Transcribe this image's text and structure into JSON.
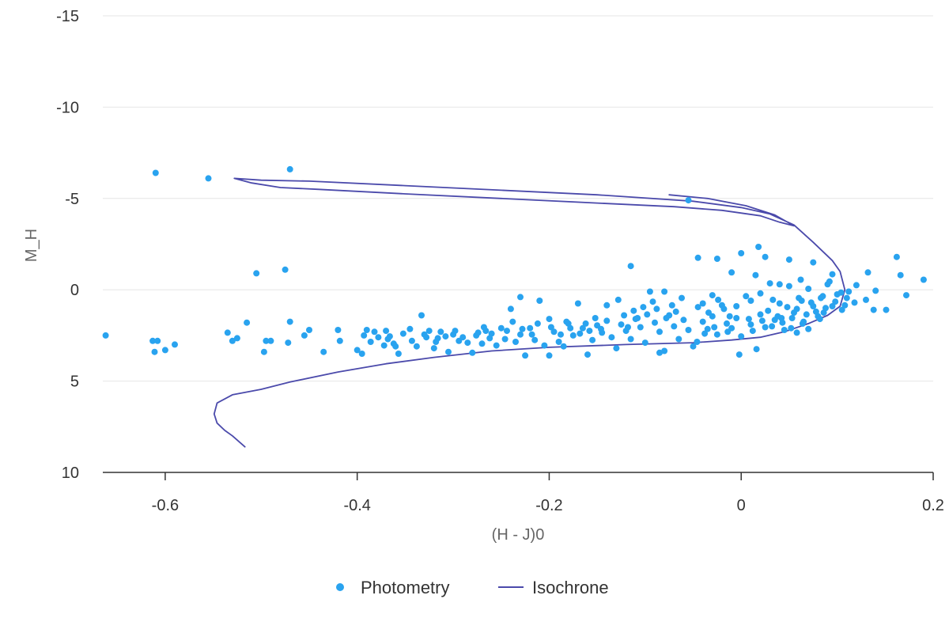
{
  "chart_data": {
    "type": "scatter",
    "title": "",
    "xlabel": "(H - J)0",
    "ylabel": "M_H",
    "xlim": [
      -0.665,
      0.2
    ],
    "ylim": [
      10,
      -15
    ],
    "y_reversed": true,
    "x_ticks": [
      -0.6,
      -0.4,
      -0.2,
      0,
      0.2
    ],
    "x_tick_labels": [
      "-0.6",
      "-0.4",
      "-0.2",
      "0",
      "0.2"
    ],
    "y_ticks": [
      -15,
      -10,
      -5,
      0,
      5,
      10
    ],
    "y_tick_labels": [
      "-15",
      "-10",
      "-5",
      "0",
      "5",
      "10"
    ],
    "grid": {
      "horizontal": true,
      "vertical": false
    },
    "legend": {
      "position": "bottom-center"
    },
    "colors": {
      "photometry": "#29a3ef",
      "isochrone": "#4b4aab",
      "grid": "#e6e6e6",
      "axis": "#333333"
    },
    "series": [
      {
        "name": "Photometry",
        "kind": "scatter",
        "points": [
          [
            -0.61,
            -6.4
          ],
          [
            -0.555,
            -6.1
          ],
          [
            -0.47,
            -6.6
          ],
          [
            -0.055,
            -4.9
          ],
          [
            -0.505,
            -0.9
          ],
          [
            -0.475,
            -1.1
          ],
          [
            -0.115,
            -1.3
          ],
          [
            -0.662,
            2.5
          ],
          [
            -0.613,
            2.8
          ],
          [
            -0.608,
            2.8
          ],
          [
            -0.611,
            3.4
          ],
          [
            -0.6,
            3.3
          ],
          [
            -0.59,
            3.0
          ],
          [
            -0.535,
            2.35
          ],
          [
            -0.53,
            2.8
          ],
          [
            -0.525,
            2.65
          ],
          [
            -0.515,
            1.8
          ],
          [
            -0.495,
            2.8
          ],
          [
            -0.49,
            2.8
          ],
          [
            -0.497,
            3.4
          ],
          [
            -0.47,
            1.75
          ],
          [
            -0.472,
            2.9
          ],
          [
            -0.455,
            2.5
          ],
          [
            -0.45,
            2.2
          ],
          [
            -0.435,
            3.4
          ],
          [
            -0.42,
            2.2
          ],
          [
            -0.418,
            2.8
          ],
          [
            -0.4,
            3.3
          ],
          [
            -0.395,
            3.5
          ],
          [
            -0.393,
            2.5
          ],
          [
            -0.39,
            2.2
          ],
          [
            -0.386,
            2.85
          ],
          [
            -0.37,
            2.25
          ],
          [
            -0.372,
            3.05
          ],
          [
            -0.366,
            2.55
          ],
          [
            -0.362,
            2.95
          ],
          [
            -0.36,
            3.1
          ],
          [
            -0.357,
            3.5
          ],
          [
            -0.345,
            2.15
          ],
          [
            -0.343,
            2.8
          ],
          [
            -0.338,
            3.1
          ],
          [
            -0.333,
            1.4
          ],
          [
            -0.33,
            2.45
          ],
          [
            -0.325,
            2.25
          ],
          [
            -0.32,
            3.2
          ],
          [
            -0.316,
            2.65
          ],
          [
            -0.313,
            2.3
          ],
          [
            -0.305,
            3.4
          ],
          [
            -0.3,
            2.45
          ],
          [
            -0.294,
            2.8
          ],
          [
            -0.29,
            2.6
          ],
          [
            -0.285,
            2.9
          ],
          [
            -0.28,
            3.45
          ],
          [
            -0.276,
            2.5
          ],
          [
            -0.27,
            2.95
          ],
          [
            -0.266,
            2.25
          ],
          [
            -0.26,
            2.4
          ],
          [
            -0.255,
            3.05
          ],
          [
            -0.25,
            2.1
          ],
          [
            -0.246,
            2.7
          ],
          [
            -0.24,
            1.05
          ],
          [
            -0.235,
            2.85
          ],
          [
            -0.23,
            2.45
          ],
          [
            -0.225,
            3.6
          ],
          [
            -0.22,
            2.1
          ],
          [
            -0.215,
            2.75
          ],
          [
            -0.21,
            0.6
          ],
          [
            -0.205,
            3.05
          ],
          [
            -0.2,
            1.6
          ],
          [
            -0.195,
            2.3
          ],
          [
            -0.19,
            2.85
          ],
          [
            -0.185,
            3.1
          ],
          [
            -0.18,
            1.85
          ],
          [
            -0.175,
            2.5
          ],
          [
            -0.17,
            0.75
          ],
          [
            -0.165,
            2.1
          ],
          [
            -0.16,
            3.55
          ],
          [
            -0.155,
            2.75
          ],
          [
            -0.15,
            1.95
          ],
          [
            -0.145,
            2.35
          ],
          [
            -0.14,
            0.85
          ],
          [
            -0.135,
            2.6
          ],
          [
            -0.13,
            3.2
          ],
          [
            -0.125,
            1.9
          ],
          [
            -0.12,
            2.25
          ],
          [
            -0.115,
            2.7
          ],
          [
            -0.11,
            1.6
          ],
          [
            -0.105,
            2.05
          ],
          [
            -0.1,
            2.9
          ],
          [
            -0.095,
            0.1
          ],
          [
            -0.09,
            1.8
          ],
          [
            -0.085,
            2.3
          ],
          [
            -0.08,
            3.35
          ],
          [
            -0.075,
            1.4
          ],
          [
            -0.07,
            2.0
          ],
          [
            -0.065,
            2.7
          ],
          [
            -0.06,
            1.65
          ],
          [
            -0.055,
            2.2
          ],
          [
            -0.05,
            3.1
          ],
          [
            -0.045,
            0.95
          ],
          [
            -0.04,
            1.75
          ],
          [
            -0.035,
            2.15
          ],
          [
            -0.03,
            1.45
          ],
          [
            -0.025,
            2.45
          ],
          [
            -0.02,
            0.85
          ],
          [
            -0.015,
            1.85
          ],
          [
            -0.01,
            2.1
          ],
          [
            -0.005,
            1.55
          ],
          [
            0,
            2.55
          ],
          [
            0.005,
            0.35
          ],
          [
            0.01,
            1.9
          ],
          [
            0.015,
            -0.8
          ],
          [
            0.02,
            1.35
          ],
          [
            0.025,
            2.05
          ],
          [
            0.03,
            -0.35
          ],
          [
            0.035,
            1.65
          ],
          [
            0.04,
            0.75
          ],
          [
            0.045,
            2.2
          ],
          [
            0.05,
            -0.2
          ],
          [
            0.055,
            1.25
          ],
          [
            0.06,
            0.45
          ],
          [
            0.065,
            1.75
          ],
          [
            0.07,
            -0.05
          ],
          [
            0.075,
            0.9
          ],
          [
            0.08,
            1.45
          ],
          [
            0.085,
            0.35
          ],
          [
            0.09,
            -0.3
          ],
          [
            0.095,
            0.9
          ],
          [
            0.1,
            0.25
          ],
          [
            0.105,
            1.1
          ],
          [
            0.11,
            0.45
          ],
          [
            0.12,
            -0.25
          ],
          [
            0.13,
            0.55
          ],
          [
            0.14,
            0.05
          ],
          [
            -0.002,
            3.55
          ],
          [
            0.016,
            3.25
          ],
          [
            0.058,
            2.35
          ],
          [
            -0.085,
            3.45
          ],
          [
            -0.2,
            3.6
          ],
          [
            -0.23,
            0.4
          ],
          [
            -0.128,
            0.55
          ],
          [
            -0.08,
            0.1
          ],
          [
            -0.03,
            0.3
          ],
          [
            0.01,
            0.6
          ],
          [
            0.04,
            -0.3
          ],
          [
            -0.045,
            -1.75
          ],
          [
            -0.025,
            -1.7
          ],
          [
            -0.01,
            -0.95
          ],
          [
            0.0,
            -2.0
          ],
          [
            0.018,
            -2.35
          ],
          [
            0.025,
            -1.8
          ],
          [
            0.05,
            -1.65
          ],
          [
            0.062,
            -0.55
          ],
          [
            0.075,
            -1.5
          ],
          [
            0.095,
            -0.85
          ],
          [
            0.132,
            -0.95
          ],
          [
            0.162,
            -1.8
          ],
          [
            0.166,
            -0.8
          ],
          [
            0.19,
            -0.55
          ],
          [
            0.172,
            0.3
          ],
          [
            0.151,
            1.1
          ],
          [
            0.138,
            1.1
          ],
          [
            0.02,
            0.2
          ],
          [
            0.028,
            1.15
          ],
          [
            0.033,
            0.55
          ],
          [
            0.038,
            1.45
          ],
          [
            0.043,
            1.8
          ],
          [
            0.048,
            0.95
          ],
          [
            0.053,
            1.55
          ],
          [
            0.058,
            1.05
          ],
          [
            0.063,
            0.6
          ],
          [
            0.068,
            1.35
          ],
          [
            0.073,
            0.7
          ],
          [
            0.078,
            1.2
          ],
          [
            0.083,
            0.45
          ],
          [
            0.088,
            1.0
          ],
          [
            0.092,
            -0.45
          ],
          [
            0.098,
            0.65
          ],
          [
            0.104,
            0.15
          ],
          [
            0.108,
            0.85
          ],
          [
            -0.005,
            0.9
          ],
          [
            -0.012,
            1.45
          ],
          [
            -0.018,
            1.05
          ],
          [
            -0.024,
            0.55
          ],
          [
            -0.034,
            1.25
          ],
          [
            -0.04,
            0.75
          ],
          [
            -0.062,
            0.45
          ],
          [
            -0.068,
            1.2
          ],
          [
            -0.072,
            0.85
          ],
          [
            -0.078,
            1.55
          ],
          [
            -0.088,
            1.05
          ],
          [
            -0.092,
            0.65
          ],
          [
            -0.098,
            1.35
          ],
          [
            -0.102,
            0.95
          ],
          [
            -0.108,
            1.55
          ],
          [
            -0.112,
            1.15
          ],
          [
            -0.118,
            2.05
          ],
          [
            -0.122,
            1.4
          ],
          [
            -0.14,
            1.7
          ],
          [
            -0.146,
            2.15
          ],
          [
            -0.152,
            1.55
          ],
          [
            -0.158,
            2.25
          ],
          [
            -0.162,
            1.85
          ],
          [
            -0.168,
            2.4
          ],
          [
            -0.178,
            2.1
          ],
          [
            -0.182,
            1.75
          ],
          [
            -0.188,
            2.45
          ],
          [
            -0.198,
            2.05
          ],
          [
            -0.212,
            1.85
          ],
          [
            -0.218,
            2.45
          ],
          [
            -0.228,
            2.15
          ],
          [
            -0.238,
            1.75
          ],
          [
            -0.244,
            2.25
          ],
          [
            -0.262,
            2.65
          ],
          [
            -0.268,
            2.05
          ],
          [
            -0.274,
            2.35
          ],
          [
            -0.298,
            2.25
          ],
          [
            -0.308,
            2.55
          ],
          [
            -0.318,
            2.85
          ],
          [
            -0.328,
            2.6
          ],
          [
            -0.352,
            2.4
          ],
          [
            -0.368,
            2.7
          ],
          [
            -0.378,
            2.6
          ],
          [
            -0.382,
            2.3
          ],
          [
            -0.046,
            2.85
          ],
          [
            -0.038,
            2.4
          ],
          [
            -0.028,
            2.05
          ],
          [
            -0.014,
            2.3
          ],
          [
            0.008,
            1.6
          ],
          [
            0.012,
            2.25
          ],
          [
            0.022,
            1.7
          ],
          [
            0.032,
            2.0
          ],
          [
            0.042,
            1.55
          ],
          [
            0.052,
            2.1
          ],
          [
            0.064,
            1.85
          ],
          [
            0.07,
            2.15
          ],
          [
            0.082,
            1.6
          ],
          [
            0.086,
            1.25
          ],
          [
            0.112,
            0.1
          ],
          [
            0.118,
            0.7
          ]
        ]
      },
      {
        "name": "Isochrone",
        "kind": "line",
        "points": [
          [
            -0.075,
            -5.2
          ],
          [
            -0.035,
            -5.0
          ],
          [
            0.005,
            -4.6
          ],
          [
            0.035,
            -4.1
          ],
          [
            0.055,
            -3.5
          ],
          [
            0.04,
            -3.7
          ],
          [
            0.02,
            -4.05
          ],
          [
            -0.02,
            -4.35
          ],
          [
            -0.07,
            -4.55
          ],
          [
            -0.15,
            -4.75
          ],
          [
            -0.25,
            -5.0
          ],
          [
            -0.35,
            -5.25
          ],
          [
            -0.44,
            -5.5
          ],
          [
            -0.48,
            -5.6
          ],
          [
            -0.51,
            -5.85
          ],
          [
            -0.528,
            -6.1
          ],
          [
            -0.5,
            -6.0
          ],
          [
            -0.45,
            -5.95
          ],
          [
            -0.35,
            -5.7
          ],
          [
            -0.25,
            -5.45
          ],
          [
            -0.15,
            -5.2
          ],
          [
            -0.05,
            -4.85
          ],
          [
            0.0,
            -4.5
          ],
          [
            0.03,
            -4.15
          ],
          [
            0.055,
            -3.55
          ],
          [
            0.075,
            -2.6
          ],
          [
            0.095,
            -1.6
          ],
          [
            0.103,
            -1.0
          ],
          [
            0.108,
            0.0
          ],
          [
            0.103,
            0.9
          ],
          [
            0.09,
            1.4
          ],
          [
            0.07,
            1.85
          ],
          [
            0.045,
            2.3
          ],
          [
            0.02,
            2.6
          ],
          [
            -0.01,
            2.75
          ],
          [
            -0.05,
            2.9
          ],
          [
            -0.12,
            3.0
          ],
          [
            -0.2,
            3.15
          ],
          [
            -0.26,
            3.35
          ],
          [
            -0.32,
            3.7
          ],
          [
            -0.37,
            4.05
          ],
          [
            -0.42,
            4.5
          ],
          [
            -0.47,
            5.05
          ],
          [
            -0.5,
            5.45
          ],
          [
            -0.53,
            5.75
          ],
          [
            -0.546,
            6.2
          ],
          [
            -0.549,
            6.8
          ],
          [
            -0.546,
            7.3
          ],
          [
            -0.538,
            7.7
          ],
          [
            -0.53,
            8.0
          ],
          [
            -0.517,
            8.6
          ]
        ]
      }
    ]
  }
}
